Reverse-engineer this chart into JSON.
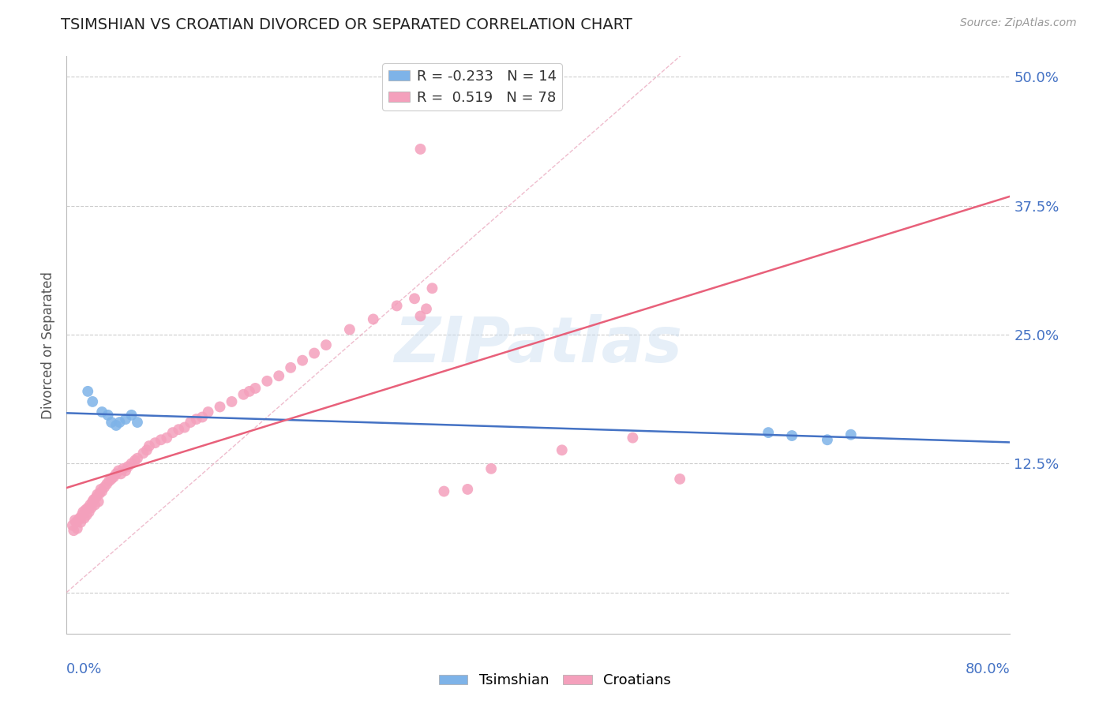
{
  "title": "TSIMSHIAN VS CROATIAN DIVORCED OR SEPARATED CORRELATION CHART",
  "source": "Source: ZipAtlas.com",
  "ylabel": "Divorced or Separated",
  "ytick_vals": [
    0.0,
    0.125,
    0.25,
    0.375,
    0.5
  ],
  "ytick_labels": [
    "",
    "12.5%",
    "25.0%",
    "37.5%",
    "50.0%"
  ],
  "xlim": [
    0.0,
    0.8
  ],
  "ylim": [
    -0.04,
    0.52
  ],
  "legend_tsimshian": "R = -0.233   N = 14",
  "legend_croatian": "R =  0.519   N = 78",
  "tsimshian_color": "#7EB3E8",
  "croatian_color": "#F4A0BC",
  "tsimshian_line_color": "#4472C4",
  "croatian_line_color": "#E8607A",
  "diagonal_color": "#E8A0B8",
  "tsimshian_x": [
    0.018,
    0.022,
    0.03,
    0.035,
    0.038,
    0.042,
    0.045,
    0.05,
    0.055,
    0.06,
    0.595,
    0.615,
    0.645,
    0.665
  ],
  "tsimshian_y": [
    0.195,
    0.185,
    0.175,
    0.172,
    0.165,
    0.162,
    0.165,
    0.168,
    0.172,
    0.165,
    0.155,
    0.152,
    0.148,
    0.153
  ],
  "croatian_x": [
    0.005,
    0.006,
    0.007,
    0.008,
    0.009,
    0.01,
    0.011,
    0.012,
    0.013,
    0.014,
    0.015,
    0.016,
    0.017,
    0.018,
    0.019,
    0.02,
    0.021,
    0.022,
    0.023,
    0.024,
    0.025,
    0.026,
    0.027,
    0.028,
    0.029,
    0.03,
    0.032,
    0.034,
    0.036,
    0.038,
    0.04,
    0.042,
    0.044,
    0.046,
    0.048,
    0.05,
    0.052,
    0.055,
    0.058,
    0.06,
    0.065,
    0.068,
    0.07,
    0.075,
    0.08,
    0.085,
    0.09,
    0.095,
    0.1,
    0.105,
    0.11,
    0.115,
    0.12,
    0.13,
    0.14,
    0.15,
    0.155,
    0.16,
    0.17,
    0.18,
    0.19,
    0.2,
    0.21,
    0.22,
    0.24,
    0.26,
    0.28,
    0.295,
    0.31,
    0.32,
    0.34,
    0.36,
    0.42,
    0.48,
    0.52,
    0.3,
    0.305,
    0.3
  ],
  "croatian_y": [
    0.065,
    0.06,
    0.07,
    0.068,
    0.062,
    0.07,
    0.072,
    0.068,
    0.075,
    0.078,
    0.072,
    0.08,
    0.075,
    0.082,
    0.078,
    0.085,
    0.082,
    0.088,
    0.09,
    0.085,
    0.092,
    0.095,
    0.088,
    0.096,
    0.1,
    0.098,
    0.102,
    0.105,
    0.108,
    0.11,
    0.112,
    0.115,
    0.118,
    0.115,
    0.12,
    0.118,
    0.122,
    0.125,
    0.128,
    0.13,
    0.135,
    0.138,
    0.142,
    0.145,
    0.148,
    0.15,
    0.155,
    0.158,
    0.16,
    0.165,
    0.168,
    0.17,
    0.175,
    0.18,
    0.185,
    0.192,
    0.195,
    0.198,
    0.205,
    0.21,
    0.218,
    0.225,
    0.232,
    0.24,
    0.255,
    0.265,
    0.278,
    0.285,
    0.295,
    0.098,
    0.1,
    0.12,
    0.138,
    0.15,
    0.11,
    0.268,
    0.275,
    0.43
  ]
}
